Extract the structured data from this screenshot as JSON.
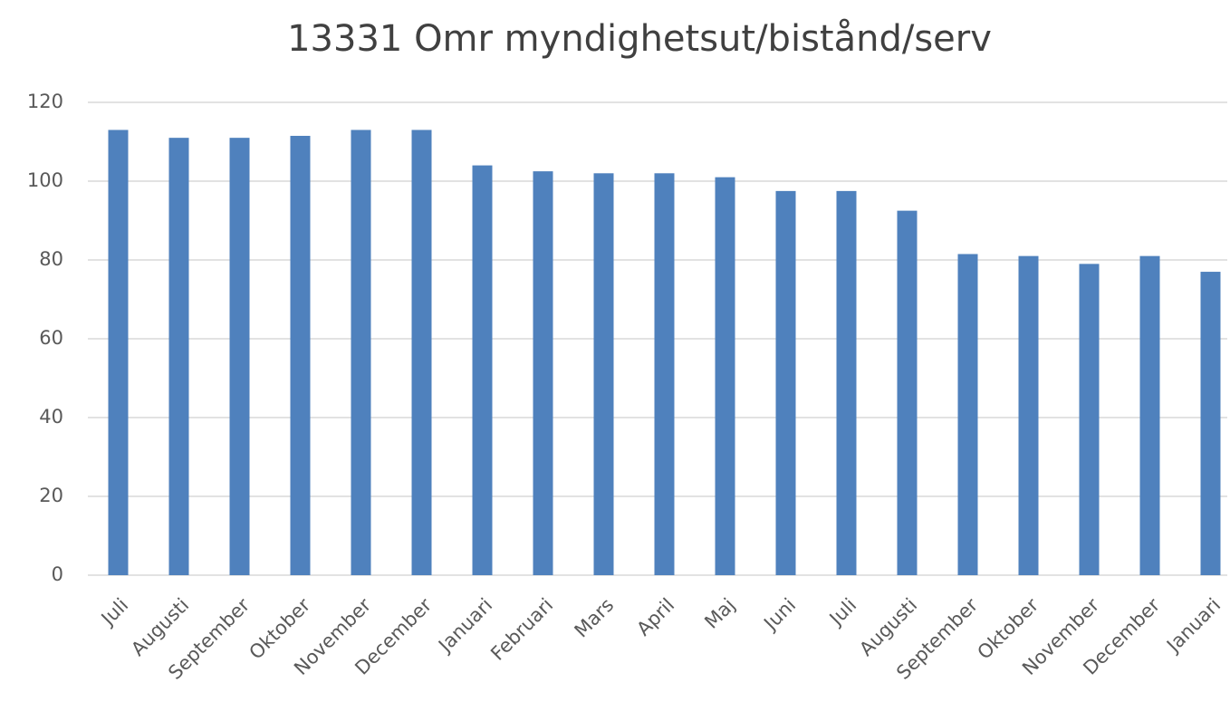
{
  "chart_data": {
    "type": "bar",
    "title": "13331 Omr myndighetsut/bistånd/serv",
    "categories": [
      "Juli",
      "Augusti",
      "September",
      "Oktober",
      "November",
      "December",
      "Januari",
      "Februari",
      "Mars",
      "April",
      "Maj",
      "Juni",
      "Juli",
      "Augusti",
      "September",
      "Oktober",
      "November",
      "December",
      "Januari"
    ],
    "values": [
      113,
      111,
      111,
      111.5,
      113,
      113,
      104,
      102.5,
      102,
      102,
      101,
      97.5,
      97.5,
      92.5,
      81.5,
      81,
      79,
      81,
      77
    ],
    "color": "#4f81bd",
    "ylim": [
      0,
      120
    ],
    "yticks": [
      0,
      20,
      40,
      60,
      80,
      100,
      120
    ],
    "grid": true
  }
}
